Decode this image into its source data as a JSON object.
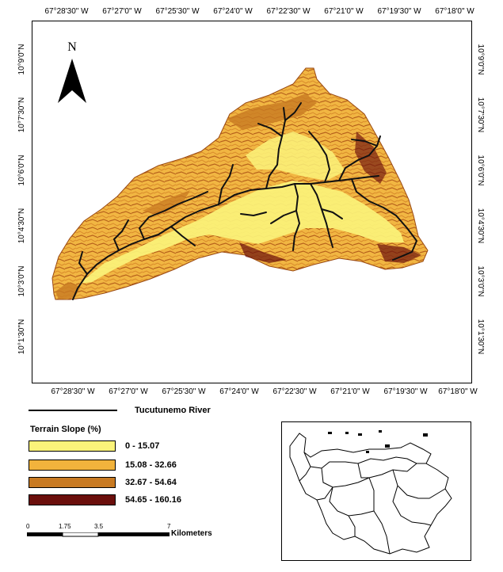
{
  "map": {
    "north_label": "N",
    "top_ticks": [
      "67°28'30\" W",
      "67°27'0\" W",
      "67°25'30\" W",
      "67°24'0\" W",
      "67°22'30\" W",
      "67°21'0\" W",
      "67°19'30\" W",
      "67°18'0\" W"
    ],
    "bottom_ticks": [
      "67°28'30\" W",
      "67°27'0\" W",
      "67°25'30\" W",
      "67°24'0\" W",
      "67°22'30\" W",
      "67°21'0\" W",
      "67°19'30\" W",
      "67°18'0\" W"
    ],
    "left_ticks": [
      "10°9'0\"N",
      "10°7'30\"N",
      "10°6'0\"N",
      "10°4'30\"N",
      "10°3'0\"N",
      "10°1'30\"N"
    ],
    "right_ticks": [
      "10°9'0\"N",
      "10°7'30\"N",
      "10°6'0\"N",
      "10°4'30\"N",
      "10°3'0\"N",
      "10°1'30\"N"
    ]
  },
  "legend": {
    "river_label": "Tucutunemo River",
    "slope_title": "Terrain Slope (%)",
    "classes": [
      {
        "label": "0 - 15.07",
        "color": "#fbf37a"
      },
      {
        "label": "15.08 - 32.66",
        "color": "#f2b33c"
      },
      {
        "label": "32.67 - 54.64",
        "color": "#c87a22"
      },
      {
        "label": "54.65 - 160.16",
        "color": "#6b0f0c"
      }
    ]
  },
  "scalebar": {
    "ticks": [
      "0",
      "1.75",
      "3.5",
      "7"
    ],
    "unit": "Kilometers"
  }
}
